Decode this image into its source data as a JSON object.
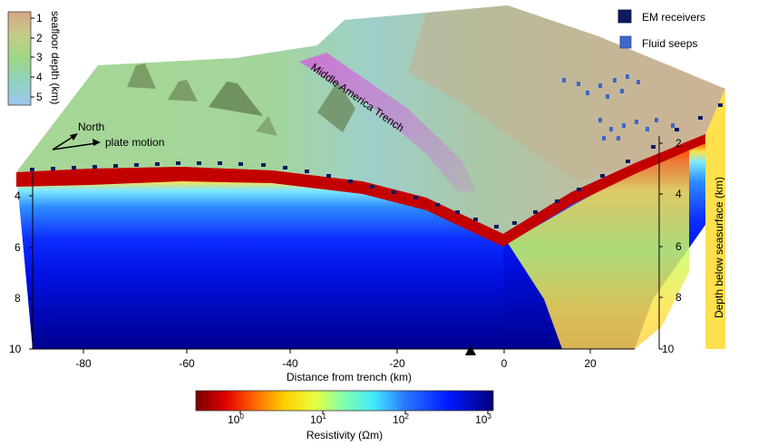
{
  "figure": {
    "depth_colorbar": {
      "label": "seafloor depth (km)",
      "ticks": [
        "1",
        "2",
        "3",
        "4",
        "5"
      ],
      "colors": [
        "#d9a58a",
        "#c3cd86",
        "#9ed685",
        "#8fd3c0",
        "#9fc4ee"
      ]
    },
    "legend": {
      "receivers_label": "EM receivers",
      "seeps_label": "Fluid seeps",
      "receiver_color": "#0c1a60",
      "seep_color": "#3f67c8"
    },
    "trench_label": "Middle America Trench",
    "north_label": "North",
    "plate_motion_label": "plate motion",
    "x_axis": {
      "label": "Distance from trench (km)",
      "ticks": [
        "-80",
        "-60",
        "-40",
        "-20",
        "0",
        "20"
      ]
    },
    "left_depth_ticks": [
      "4",
      "6",
      "8",
      "10"
    ],
    "right_depth_ticks": [
      "2",
      "4",
      "6",
      "8",
      "10"
    ],
    "right_axis_label": "Depth below seasurface (km)",
    "resistivity_colorbar": {
      "label": "Resistivity (Ωm)",
      "ticks": [
        {
          "base": "10",
          "exp": "0"
        },
        {
          "base": "10",
          "exp": "1"
        },
        {
          "base": "10",
          "exp": "2"
        },
        {
          "base": "10",
          "exp": "3"
        }
      ],
      "colors": [
        "#7a0000",
        "#e00000",
        "#ff6a00",
        "#ffd000",
        "#e8ff40",
        "#7dffb0",
        "#40e8ff",
        "#2a7bff",
        "#0018ff",
        "#00007a"
      ]
    }
  }
}
